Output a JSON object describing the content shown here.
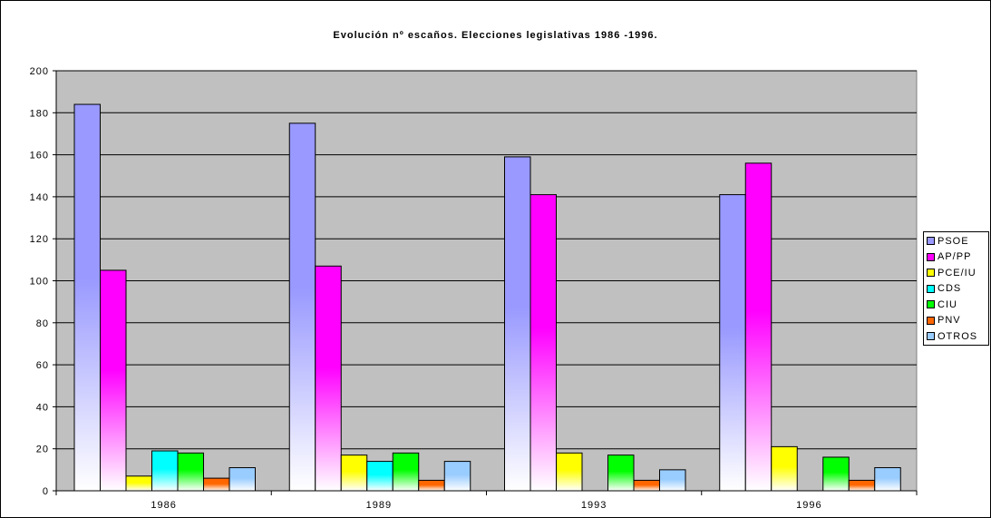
{
  "chart_data": {
    "type": "bar",
    "title": "Evolución nº escaños. Elecciones legislativas 1986 -1996.",
    "xlabel": "",
    "ylabel": "",
    "categories": [
      "1986",
      "1989",
      "1993",
      "1996"
    ],
    "ylim": [
      0,
      200
    ],
    "yticks": [
      "0",
      "20",
      "40",
      "60",
      "80",
      "100",
      "120",
      "140",
      "160",
      "180",
      "200"
    ],
    "grid": true,
    "legend_position": "right",
    "series": [
      {
        "name": "PSOE",
        "color": "#9999ff",
        "values": [
          184,
          175,
          159,
          141
        ]
      },
      {
        "name": "AP/PP",
        "color": "#ff00ff",
        "values": [
          105,
          107,
          141,
          156
        ]
      },
      {
        "name": "PCE/IU",
        "color": "#ffff00",
        "values": [
          7,
          17,
          18,
          21
        ]
      },
      {
        "name": "CDS",
        "color": "#00ffff",
        "values": [
          19,
          14,
          0,
          0
        ]
      },
      {
        "name": "CIU",
        "color": "#00ff00",
        "values": [
          18,
          18,
          17,
          16
        ]
      },
      {
        "name": "PNV",
        "color": "#ff6600",
        "values": [
          6,
          5,
          5,
          5
        ]
      },
      {
        "name": "OTROS",
        "color": "#99ccff",
        "values": [
          11,
          14,
          10,
          11
        ]
      }
    ]
  }
}
